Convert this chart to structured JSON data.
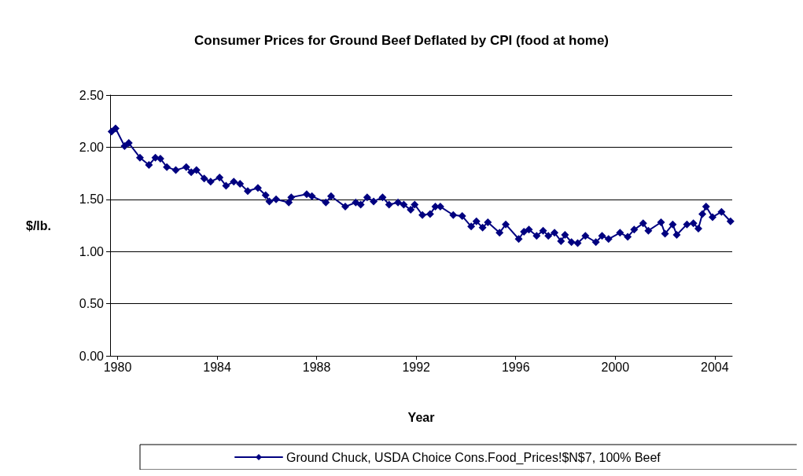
{
  "chart_data": {
    "type": "line",
    "title": "Consumer Prices for Ground Beef Deflated by CPI (food at home)",
    "xlabel": "Year",
    "ylabel": "$/lb.",
    "xlim": [
      1979.7,
      2004.7
    ],
    "xticks": [
      1980,
      1984,
      1988,
      1992,
      1996,
      2000,
      2004
    ],
    "ylim": [
      0,
      2.5
    ],
    "yticks": [
      {
        "value": 0,
        "label": "0.00"
      },
      {
        "value": 0.5,
        "label": "0.50"
      },
      {
        "value": 1,
        "label": "1.00"
      },
      {
        "value": 1.5,
        "label": "1.50"
      },
      {
        "value": 2,
        "label": "2.00"
      },
      {
        "value": 2.5,
        "label": "2.50"
      }
    ],
    "grid": "y",
    "legend": "bottom",
    "marker": "diamond",
    "line_style": "solid",
    "series": [
      {
        "name": "Ground Chuck, USDA Choice Cons.Food_Prices!$N$7, 100% Beef",
        "color": "#000080",
        "x": [
          1979.76,
          1979.92,
          1980.28,
          1980.45,
          1980.9,
          1981.26,
          1981.52,
          1981.72,
          1981.98,
          1982.34,
          1982.76,
          1982.96,
          1983.17,
          1983.48,
          1983.74,
          1984.1,
          1984.36,
          1984.67,
          1984.92,
          1985.23,
          1985.64,
          1985.95,
          1986.1,
          1986.37,
          1986.88,
          1986.98,
          1987.6,
          1987.81,
          1988.37,
          1988.58,
          1989.15,
          1989.57,
          1989.77,
          1990.03,
          1990.29,
          1990.65,
          1990.91,
          1991.27,
          1991.5,
          1991.78,
          1991.94,
          1992.25,
          1992.56,
          1992.77,
          1992.97,
          1993.49,
          1993.85,
          1994.21,
          1994.42,
          1994.67,
          1994.88,
          1995.35,
          1995.6,
          1996.12,
          1996.33,
          1996.53,
          1996.84,
          1997.1,
          1997.31,
          1997.56,
          1997.82,
          1997.98,
          1998.24,
          1998.49,
          1998.8,
          1999.22,
          1999.47,
          1999.73,
          2000.19,
          2000.5,
          2000.76,
          2001.12,
          2001.33,
          2001.84,
          2002.0,
          2002.31,
          2002.47,
          2002.88,
          2003.14,
          2003.34,
          2003.5,
          2003.65,
          2003.91,
          2004.27,
          2004.63
        ],
        "values": [
          2.15,
          2.18,
          2.01,
          2.04,
          1.9,
          1.83,
          1.9,
          1.89,
          1.81,
          1.78,
          1.81,
          1.76,
          1.78,
          1.7,
          1.67,
          1.71,
          1.63,
          1.67,
          1.65,
          1.58,
          1.61,
          1.54,
          1.48,
          1.5,
          1.47,
          1.52,
          1.55,
          1.53,
          1.47,
          1.53,
          1.43,
          1.47,
          1.45,
          1.52,
          1.48,
          1.52,
          1.45,
          1.47,
          1.45,
          1.4,
          1.45,
          1.35,
          1.36,
          1.43,
          1.43,
          1.35,
          1.34,
          1.24,
          1.29,
          1.23,
          1.28,
          1.18,
          1.26,
          1.12,
          1.19,
          1.21,
          1.15,
          1.2,
          1.15,
          1.18,
          1.1,
          1.16,
          1.09,
          1.08,
          1.15,
          1.09,
          1.15,
          1.12,
          1.18,
          1.14,
          1.21,
          1.27,
          1.2,
          1.28,
          1.17,
          1.26,
          1.16,
          1.26,
          1.27,
          1.22,
          1.36,
          1.43,
          1.33,
          1.38,
          1.29
        ]
      }
    ]
  }
}
